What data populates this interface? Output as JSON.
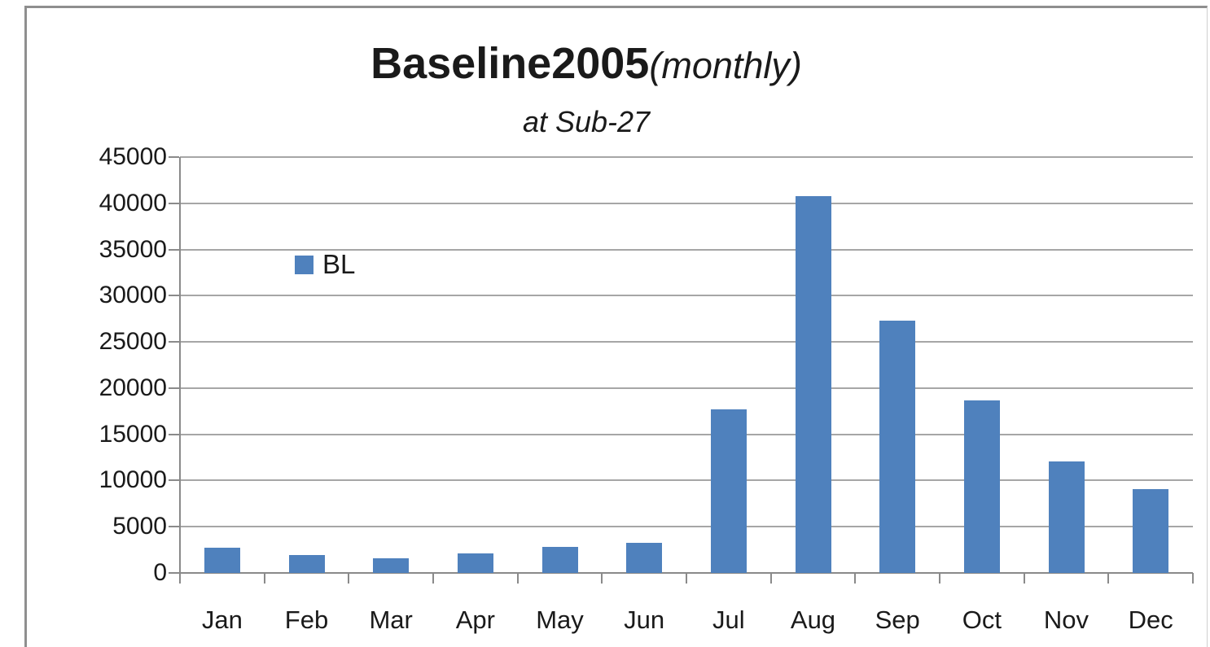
{
  "chart_data": {
    "type": "bar",
    "title": {
      "bold": "Baseline2005",
      "italic": "(monthly)"
    },
    "subtitle": "at Sub-27",
    "categories": [
      "Jan",
      "Feb",
      "Mar",
      "Apr",
      "May",
      "Jun",
      "Jul",
      "Aug",
      "Sep",
      "Oct",
      "Nov",
      "Dec"
    ],
    "series": [
      {
        "name": "BL",
        "values": [
          2700,
          1900,
          1600,
          2100,
          2800,
          3300,
          17700,
          40800,
          27300,
          18700,
          12100,
          9100
        ]
      }
    ],
    "ylim": [
      0,
      45000
    ],
    "yticks": [
      0,
      5000,
      10000,
      15000,
      20000,
      25000,
      30000,
      35000,
      40000,
      45000
    ],
    "grid": true,
    "legend_position": "inside-upper-left",
    "colors": {
      "bar": "#4F81BD",
      "gridline": "#A6A6A6",
      "axis": "#8A8A8A",
      "frame": "#8F8F8F",
      "text": "#1A1A1A"
    }
  }
}
